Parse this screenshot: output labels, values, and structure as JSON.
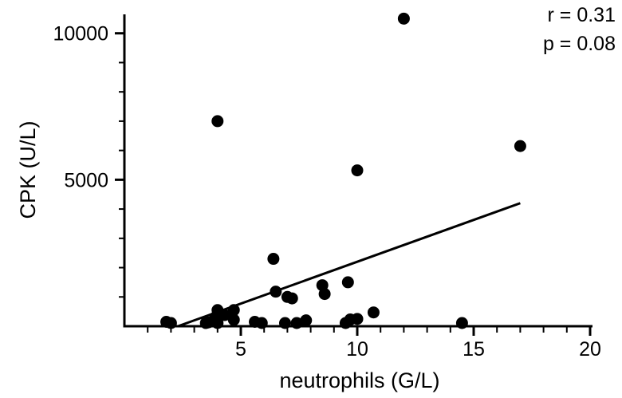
{
  "chart_data": {
    "type": "scatter",
    "title": "",
    "xlabel": "neutrophils (G/L)",
    "ylabel": "CPK (U/L)",
    "xlim": [
      0,
      20
    ],
    "ylim": [
      0,
      11000
    ],
    "x_ticks": [
      5,
      10,
      15,
      20
    ],
    "x_tick_labels": [
      "5",
      "10",
      "15",
      "20"
    ],
    "y_ticks": [
      5000,
      10000
    ],
    "y_tick_labels": [
      "5000",
      "10000"
    ],
    "grid": false,
    "annotations": [
      "r = 0.31",
      "p = 0.08"
    ],
    "points": [
      {
        "x": 12.0,
        "y": 10500
      },
      {
        "x": 4.0,
        "y": 7000
      },
      {
        "x": 17.0,
        "y": 6150
      },
      {
        "x": 10.0,
        "y": 5320
      },
      {
        "x": 6.4,
        "y": 2300
      },
      {
        "x": 9.6,
        "y": 1500
      },
      {
        "x": 8.5,
        "y": 1400
      },
      {
        "x": 6.5,
        "y": 1180
      },
      {
        "x": 8.6,
        "y": 1100
      },
      {
        "x": 7.0,
        "y": 1000
      },
      {
        "x": 7.2,
        "y": 950
      },
      {
        "x": 4.0,
        "y": 550
      },
      {
        "x": 4.7,
        "y": 550
      },
      {
        "x": 10.7,
        "y": 470
      },
      {
        "x": 4.3,
        "y": 380
      },
      {
        "x": 3.9,
        "y": 300
      },
      {
        "x": 10.0,
        "y": 250
      },
      {
        "x": 9.7,
        "y": 230
      },
      {
        "x": 4.7,
        "y": 220
      },
      {
        "x": 7.8,
        "y": 200
      },
      {
        "x": 1.8,
        "y": 150
      },
      {
        "x": 5.6,
        "y": 150
      },
      {
        "x": 3.6,
        "y": 130
      },
      {
        "x": 2.0,
        "y": 100
      },
      {
        "x": 4.0,
        "y": 100
      },
      {
        "x": 3.5,
        "y": 60
      },
      {
        "x": 5.9,
        "y": 50
      },
      {
        "x": 6.9,
        "y": 80
      },
      {
        "x": 7.4,
        "y": 50
      },
      {
        "x": 9.5,
        "y": 50
      },
      {
        "x": 14.5,
        "y": 70
      }
    ],
    "regression_line": {
      "x": [
        2.3,
        17.0
      ],
      "y": [
        0,
        4200
      ]
    },
    "marker_color": "#000000",
    "line_color": "#000000"
  }
}
